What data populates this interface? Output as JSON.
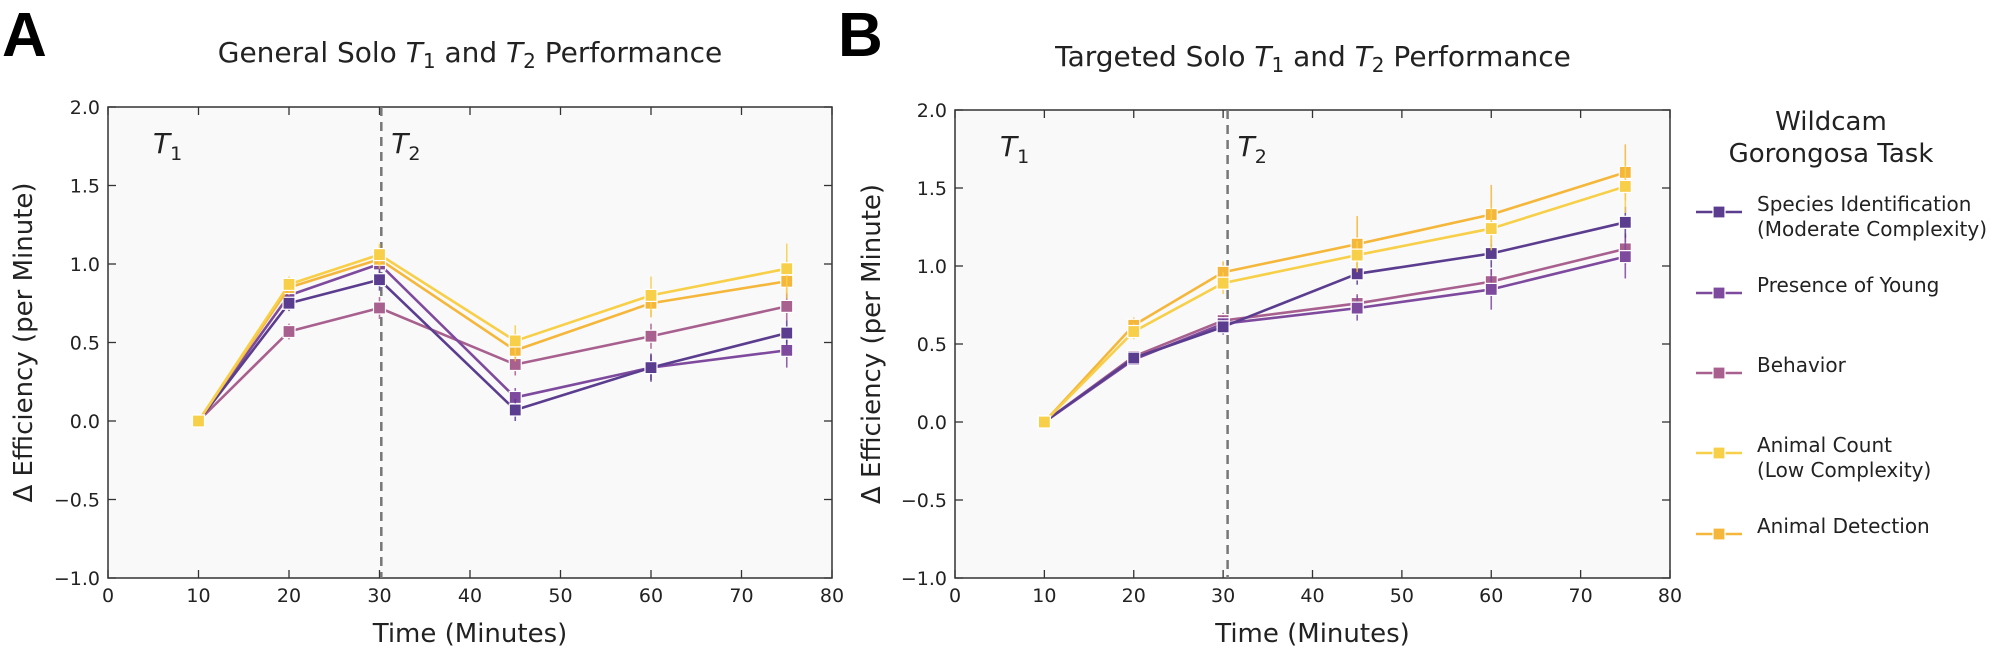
{
  "figure": {
    "legend": {
      "title_lines": [
        "Wildcam",
        "Gorongosa Task"
      ],
      "entries": [
        {
          "key": "species",
          "lines": [
            "Species Identification",
            "(Moderate Complexity)"
          ]
        },
        {
          "key": "young",
          "lines": [
            "Presence of Young"
          ]
        },
        {
          "key": "behavior",
          "lines": [
            "Behavior"
          ]
        },
        {
          "key": "count",
          "lines": [
            "Animal Count",
            "(Low Complexity)"
          ]
        },
        {
          "key": "detection",
          "lines": [
            "Animal Detection"
          ]
        }
      ]
    }
  },
  "chart_data": [
    {
      "id": "A",
      "panel_letter": "A",
      "type": "line",
      "title": {
        "prefix": "General Solo ",
        "t1": "T",
        "s1": "1",
        "mid": " and ",
        "t2": "T",
        "s2": "2",
        "suffix": " Performance"
      },
      "xlabel": "Time (Minutes)",
      "ylabel": "Δ Efficiency (per Minute)",
      "xlim": [
        0,
        80
      ],
      "ylim": [
        -1.0,
        2.0
      ],
      "xticks": [
        0,
        10,
        20,
        30,
        40,
        50,
        60,
        70,
        80
      ],
      "xtick_labels": [
        "0",
        "10",
        "20",
        "30",
        "40",
        "50",
        "60",
        "70",
        "80"
      ],
      "yticks": [
        -1.0,
        -0.5,
        0.0,
        0.5,
        1.0,
        1.5,
        2.0
      ],
      "ytick_labels": [
        "−1.0",
        "−0.5",
        "0.0",
        "0.5",
        "1.0",
        "1.5",
        "2.0"
      ],
      "phase_boundary_x": 30.2,
      "phase_labels": [
        {
          "t": "T",
          "sub": "1"
        },
        {
          "t": "T",
          "sub": "2"
        }
      ],
      "x": [
        10,
        20,
        30,
        45,
        60,
        75
      ],
      "series": [
        {
          "name": "Species Identification (Moderate Complexity)",
          "color": "#5b3d8f",
          "values": [
            0,
            0.75,
            0.9,
            0.07,
            0.34,
            0.56
          ],
          "errors": [
            0,
            0.05,
            0.07,
            0.07,
            0.09,
            0.08
          ]
        },
        {
          "name": "Presence of Young",
          "color": "#7e4a9e",
          "values": [
            0,
            0.8,
            1.0,
            0.15,
            0.34,
            0.45
          ],
          "errors": [
            0,
            0.05,
            0.06,
            0.06,
            0.08,
            0.11
          ]
        },
        {
          "name": "Behavior",
          "color": "#a8608f",
          "values": [
            0,
            0.57,
            0.72,
            0.36,
            0.54,
            0.73
          ],
          "errors": [
            0,
            0.05,
            0.07,
            0.07,
            0.08,
            0.09
          ]
        },
        {
          "name": "Animal Count (Low Complexity)",
          "color": "#f7cf48",
          "values": [
            0,
            0.87,
            1.06,
            0.51,
            0.8,
            0.97
          ],
          "errors": [
            0,
            0.05,
            0.07,
            0.1,
            0.12,
            0.16
          ]
        },
        {
          "name": "Animal Detection",
          "color": "#f5b73b",
          "values": [
            0,
            0.85,
            1.03,
            0.45,
            0.75,
            0.89
          ],
          "errors": [
            0,
            0.05,
            0.06,
            0.07,
            0.09,
            0.11
          ]
        }
      ]
    },
    {
      "id": "B",
      "panel_letter": "B",
      "type": "line",
      "title": {
        "prefix": "Targeted Solo ",
        "t1": "T",
        "s1": "1",
        "mid": " and ",
        "t2": "T",
        "s2": "2",
        "suffix": " Performance"
      },
      "xlabel": "Time (Minutes)",
      "ylabel": "Δ Efficiency (per Minute)",
      "xlim": [
        0,
        80
      ],
      "ylim": [
        -1.0,
        2.0
      ],
      "xticks": [
        0,
        10,
        20,
        30,
        40,
        50,
        60,
        70,
        80
      ],
      "xtick_labels": [
        "0",
        "10",
        "20",
        "30",
        "40",
        "50",
        "60",
        "70",
        "80"
      ],
      "yticks": [
        -1.0,
        -0.5,
        0.0,
        0.5,
        1.0,
        1.5,
        2.0
      ],
      "ytick_labels": [
        "−1.0",
        "−0.5",
        "0.0",
        "0.5",
        "1.0",
        "1.5",
        "2.0"
      ],
      "phase_boundary_x": 30.5,
      "phase_labels": [
        {
          "t": "T",
          "sub": "1"
        },
        {
          "t": "T",
          "sub": "2"
        }
      ],
      "x": [
        10,
        20,
        30,
        45,
        60,
        75
      ],
      "series": [
        {
          "name": "Species Identification (Moderate Complexity)",
          "color": "#5b3d8f",
          "values": [
            0,
            0.41,
            0.61,
            0.95,
            1.08,
            1.28
          ],
          "errors": [
            0,
            0.04,
            0.05,
            0.07,
            0.09,
            0.1
          ]
        },
        {
          "name": "Presence of Young",
          "color": "#7e4a9e",
          "values": [
            0,
            0.4,
            0.63,
            0.73,
            0.85,
            1.06
          ],
          "errors": [
            0,
            0.04,
            0.05,
            0.08,
            0.13,
            0.14
          ]
        },
        {
          "name": "Behavior",
          "color": "#a8608f",
          "values": [
            0,
            0.42,
            0.65,
            0.76,
            0.9,
            1.11
          ],
          "errors": [
            0,
            0.04,
            0.05,
            0.06,
            0.08,
            0.1
          ]
        },
        {
          "name": "Animal Count (Low Complexity)",
          "color": "#f7cf48",
          "values": [
            0,
            0.58,
            0.89,
            1.07,
            1.24,
            1.51
          ],
          "errors": [
            0,
            0.05,
            0.07,
            0.09,
            0.14,
            0.17
          ]
        },
        {
          "name": "Animal Detection",
          "color": "#f5b73b",
          "values": [
            0,
            0.62,
            0.96,
            1.14,
            1.33,
            1.6
          ],
          "errors": [
            0,
            0.05,
            0.07,
            0.18,
            0.19,
            0.18
          ]
        }
      ]
    }
  ]
}
